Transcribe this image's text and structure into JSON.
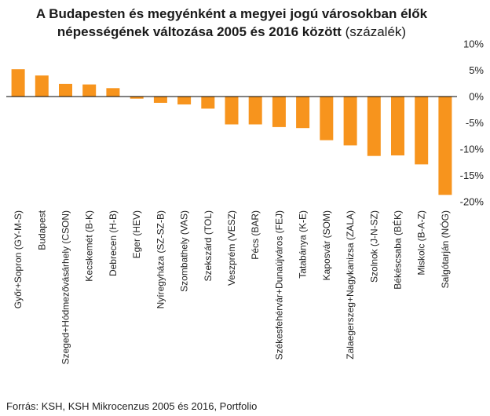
{
  "chart_data": {
    "type": "bar",
    "title_line1": "A Budapesten és megyénként a megyei jogú városokban élők",
    "title_line2": "népességének változása 2005 és 2016 között",
    "title_unit": "(százalék)",
    "categories": [
      "Győr+Sopron (GY-M-S)",
      "Budapest",
      "Szeged+Hódmezővásárhely (CSON)",
      "Kecskemét (B-K)",
      "Debrecen (H-B)",
      "Eger (HEV)",
      "Nyíregyháza (SZ-SZ-B)",
      "Szombathely (VAS)",
      "Szekszárd (TOL)",
      "Veszprém (VESZ)",
      "Pécs (BAR)",
      "Székesfehérvár+Dunaújváros (FEJ)",
      "Tatabánya (K-E)",
      "Kaposvár (SOM)",
      "Zalaegerszeg+Nagykanizsa (ZALA)",
      "Szolnok (J-N-SZ)",
      "Békéscsaba (BÉK)",
      "Miskolc (B-A-Z)",
      "Salgótarján (NÓG)"
    ],
    "values": [
      5.2,
      4.0,
      2.4,
      2.3,
      1.6,
      -0.4,
      -1.2,
      -1.5,
      -2.3,
      -5.3,
      -5.3,
      -5.8,
      -6.0,
      -8.3,
      -9.3,
      -11.3,
      -11.2,
      -12.9,
      -18.7
    ],
    "yticks": [
      "10%",
      "5%",
      "0%",
      "-5%",
      "-10%",
      "-15%",
      "-20%"
    ],
    "ytick_values": [
      10,
      5,
      0,
      -5,
      -10,
      -15,
      -20
    ],
    "ylim": [
      -20,
      10
    ],
    "axis_position": "right",
    "bar_color": "#f7941d",
    "grid": false,
    "legend": "none"
  },
  "source": "Forrás: KSH, KSH Mikrocenzus 2005 és 2016, Portfolio"
}
